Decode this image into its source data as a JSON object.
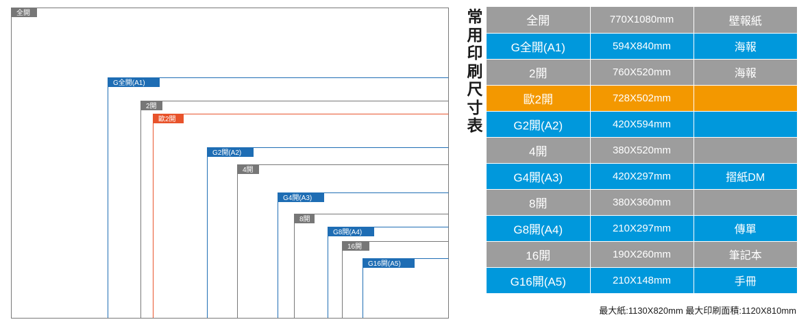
{
  "colors": {
    "gray": "#9d9d9d",
    "blue": "#0098dc",
    "orange": "#f39800",
    "outline_blue": "#1e6db4",
    "outline_gray": "#777777",
    "outline_orange": "#e8532b"
  },
  "diagram": {
    "labels": [
      "全開",
      "G全開(A1)",
      "2開",
      "歐2開",
      "G2開(A2)",
      "4開",
      "G4開(A3)",
      "8開",
      "G8開(A4)",
      "16開",
      "G16開(A5)"
    ]
  },
  "title_chars": [
    "常",
    "用",
    "印",
    "刷",
    "尺",
    "寸",
    "表"
  ],
  "table": {
    "rows": [
      {
        "name": "全開",
        "dim": "770X1080mm",
        "use": "壁報紙",
        "color": "gray"
      },
      {
        "name": "G全開(A1)",
        "dim": "594X840mm",
        "use": "海報",
        "color": "blue"
      },
      {
        "name": "2開",
        "dim": "760X520mm",
        "use": "海報",
        "color": "gray"
      },
      {
        "name": "歐2開",
        "dim": "728X502mm",
        "use": "",
        "color": "orange"
      },
      {
        "name": "G2開(A2)",
        "dim": "420X594mm",
        "use": "",
        "color": "blue"
      },
      {
        "name": "4開",
        "dim": "380X520mm",
        "use": "",
        "color": "gray"
      },
      {
        "name": "G4開(A3)",
        "dim": "420X297mm",
        "use": "摺紙DM",
        "color": "blue"
      },
      {
        "name": "8開",
        "dim": "380X360mm",
        "use": "",
        "color": "gray"
      },
      {
        "name": "G8開(A4)",
        "dim": "210X297mm",
        "use": "傳單",
        "color": "blue"
      },
      {
        "name": "16開",
        "dim": "190X260mm",
        "use": "筆記本",
        "color": "gray"
      },
      {
        "name": "G16開(A5)",
        "dim": "210X148mm",
        "use": "手冊",
        "color": "blue"
      }
    ]
  },
  "footer": "最大紙:1130X820mm  最大印刷面積:1120X810mm"
}
